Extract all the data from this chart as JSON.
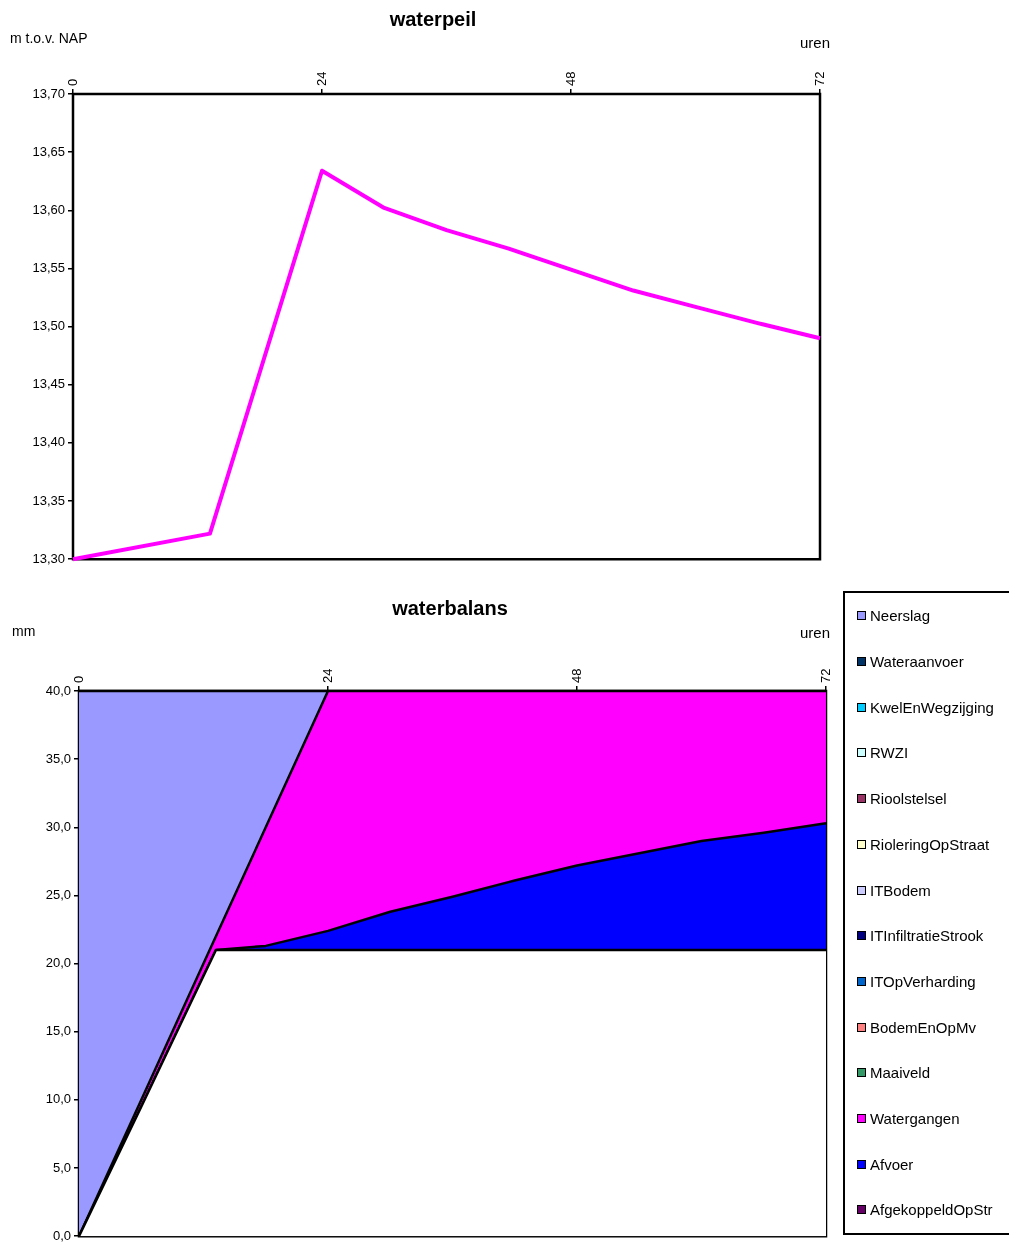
{
  "chart_data": [
    {
      "type": "line",
      "title": "waterpeil",
      "ylabel": "m t.o.v. NAP",
      "xlabel": "uren",
      "x": [
        0,
        13.2,
        24,
        30,
        36,
        42,
        48,
        54,
        60,
        66,
        72
      ],
      "series": [
        {
          "color": "#ff00ff",
          "values": [
            13.3,
            13.322,
            13.634,
            13.602,
            13.583,
            13.567,
            13.549,
            13.531,
            13.517,
            13.503,
            13.49
          ]
        }
      ],
      "xlim": [
        0,
        72
      ],
      "xticks": [
        0,
        24,
        48,
        72
      ],
      "ylim": [
        13.3,
        13.7
      ],
      "yticks": [
        {
          "value": 13.3,
          "label": "13,30"
        },
        {
          "value": 13.35,
          "label": "13,35"
        },
        {
          "value": 13.4,
          "label": "13,40"
        },
        {
          "value": 13.45,
          "label": "13,45"
        },
        {
          "value": 13.5,
          "label": "13,50"
        },
        {
          "value": 13.55,
          "label": "13,55"
        },
        {
          "value": 13.6,
          "label": "13,60"
        },
        {
          "value": 13.65,
          "label": "13,65"
        },
        {
          "value": 13.7,
          "label": "13,70"
        }
      ],
      "grid": false,
      "legend": false,
      "marker": "none"
    },
    {
      "type": "area",
      "title": "waterbalans",
      "ylabel": "mm",
      "xlabel": "uren",
      "stacked": true,
      "x": [
        0,
        6,
        12,
        13.2,
        18,
        24,
        30,
        36,
        42,
        48,
        54,
        60,
        66,
        72
      ],
      "series": [
        {
          "color": "#ffffff",
          "values": [
            0,
            9.5,
            19.1,
            21,
            21,
            21,
            21,
            21,
            21,
            21,
            21,
            21,
            21,
            21
          ]
        },
        {
          "name": "AfgekoppeldOpStr",
          "color": "#660066",
          "values": [
            null,
            null,
            null,
            null,
            null,
            null,
            null,
            null,
            null,
            null,
            null,
            null,
            null,
            null
          ]
        },
        {
          "name": "Afvoer",
          "color": "#0000ff",
          "values": [
            0,
            0,
            0,
            0,
            0.3,
            1.4,
            2.8,
            3.9,
            5.1,
            6.2,
            7.1,
            8,
            8.6,
            9.3
          ]
        },
        {
          "name": "Watergangen",
          "color": "#ff00ff",
          "values": [
            0,
            0.5,
            0.9,
            1,
            8.7,
            17.6,
            16.2,
            15.1,
            13.9,
            12.8,
            11.9,
            11,
            10.4,
            9.7
          ]
        },
        {
          "name": "Maaiveld",
          "color": "#339966",
          "values": [
            null,
            null,
            null,
            null,
            null,
            null,
            null,
            null,
            null,
            null,
            null,
            null,
            null,
            null
          ]
        },
        {
          "name": "BodemEnOpMv",
          "color": "#ff8080",
          "values": [
            null,
            null,
            null,
            null,
            null,
            null,
            null,
            null,
            null,
            null,
            null,
            null,
            null,
            null
          ]
        },
        {
          "name": "ITOpVerharding",
          "color": "#0066cc",
          "values": [
            null,
            null,
            null,
            null,
            null,
            null,
            null,
            null,
            null,
            null,
            null,
            null,
            null,
            null
          ]
        },
        {
          "name": "ITInfiltratieStrook",
          "color": "#000080",
          "values": [
            null,
            null,
            null,
            null,
            null,
            null,
            null,
            null,
            null,
            null,
            null,
            null,
            null,
            null
          ]
        },
        {
          "name": "ITBodem",
          "color": "#ccccff",
          "values": [
            null,
            null,
            null,
            null,
            null,
            null,
            null,
            null,
            null,
            null,
            null,
            null,
            null,
            null
          ]
        },
        {
          "name": "RioleringOpStraat",
          "color": "#ffffcc",
          "values": [
            null,
            null,
            null,
            null,
            null,
            null,
            null,
            null,
            null,
            null,
            null,
            null,
            null,
            null
          ]
        },
        {
          "name": "Rioolstelsel",
          "color": "#993366",
          "values": [
            null,
            null,
            null,
            null,
            null,
            null,
            null,
            null,
            null,
            null,
            null,
            null,
            null,
            null
          ]
        },
        {
          "name": "RWZI",
          "color": "#ccffff",
          "values": [
            null,
            null,
            null,
            null,
            null,
            null,
            null,
            null,
            null,
            null,
            null,
            null,
            null,
            null
          ]
        },
        {
          "name": "KwelEnWegzijging",
          "color": "#00ccff",
          "values": [
            null,
            null,
            null,
            null,
            null,
            null,
            null,
            null,
            null,
            null,
            null,
            null,
            null,
            null
          ]
        },
        {
          "name": "Wateraanvoer",
          "color": "#003366",
          "values": [
            null,
            null,
            null,
            null,
            null,
            null,
            null,
            null,
            null,
            null,
            null,
            null,
            null,
            null
          ]
        },
        {
          "name": "Neerslag",
          "color": "#9999ff",
          "values": [
            40,
            30,
            20,
            18,
            10,
            0,
            null,
            null,
            null,
            null,
            null,
            null,
            null,
            null
          ]
        }
      ],
      "xlim": [
        0,
        72
      ],
      "xticks": [
        0,
        24,
        48,
        72
      ],
      "ylim": [
        0,
        40
      ],
      "yticks": [
        {
          "value": 0,
          "label": "0,0"
        },
        {
          "value": 5,
          "label": "5,0"
        },
        {
          "value": 10,
          "label": "10,0"
        },
        {
          "value": 15,
          "label": "15,0"
        },
        {
          "value": 20,
          "label": "20,0"
        },
        {
          "value": 25,
          "label": "25,0"
        },
        {
          "value": 30,
          "label": "30,0"
        },
        {
          "value": 35,
          "label": "35,0"
        },
        {
          "value": 40,
          "label": "40,0"
        }
      ],
      "grid": false,
      "legend": "right",
      "marker": "none"
    }
  ]
}
